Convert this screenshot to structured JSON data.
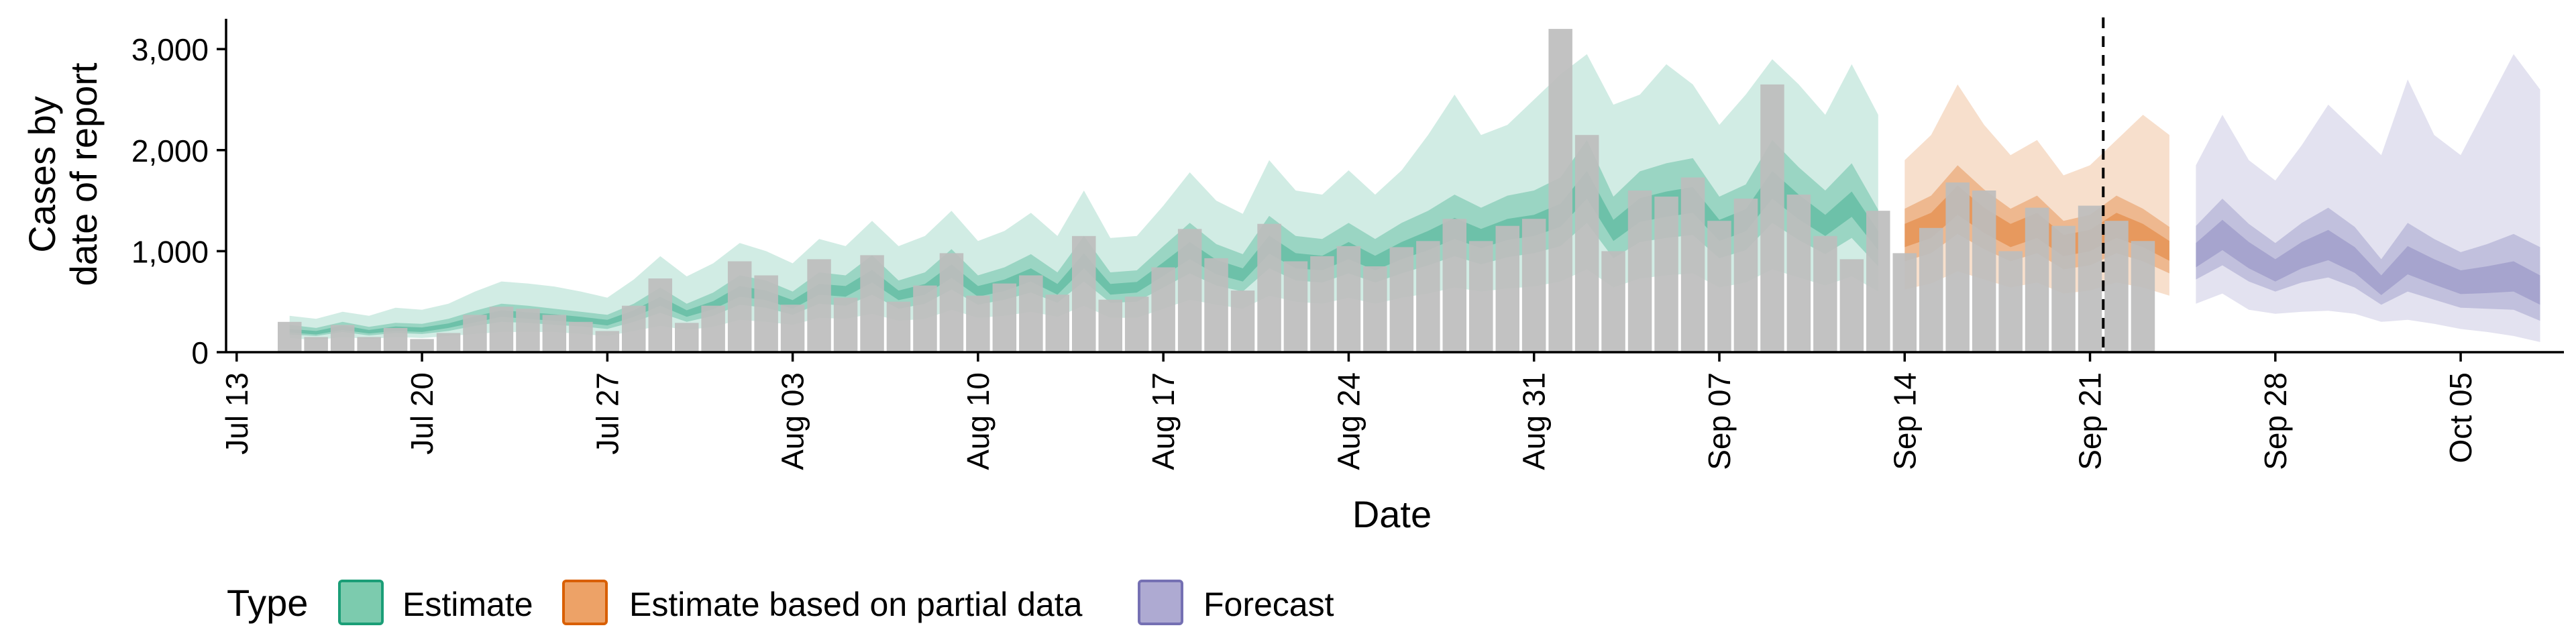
{
  "chart_data": {
    "type": "bar",
    "title": "",
    "xlabel": "Date",
    "ylabel_lines": [
      "Cases by",
      "date of report"
    ],
    "ylim": [
      0,
      3300
    ],
    "yticks": [
      0,
      1000,
      2000,
      3000
    ],
    "ytick_labels": [
      "0",
      "1,000",
      "2,000",
      "3,000"
    ],
    "x_start_date": "2020-07-13",
    "xlim_days": [
      -0.4,
      87.9
    ],
    "xticks": [
      {
        "day": 0,
        "label": "Jul 13"
      },
      {
        "day": 7,
        "label": "Jul 20"
      },
      {
        "day": 14,
        "label": "Jul 27"
      },
      {
        "day": 21,
        "label": "Aug 03"
      },
      {
        "day": 28,
        "label": "Aug 10"
      },
      {
        "day": 35,
        "label": "Aug 17"
      },
      {
        "day": 42,
        "label": "Aug 24"
      },
      {
        "day": 49,
        "label": "Aug 31"
      },
      {
        "day": 56,
        "label": "Sep 07"
      },
      {
        "day": 63,
        "label": "Sep 14"
      },
      {
        "day": 70,
        "label": "Sep 21"
      },
      {
        "day": 77,
        "label": "Sep 28"
      },
      {
        "day": 84,
        "label": "Oct 05"
      }
    ],
    "vline_day": 70.5,
    "grid": false,
    "legend": {
      "title": "Type",
      "placement": "bottom",
      "entries": [
        {
          "label": "Estimate",
          "fill": "#7ccbae",
          "stroke": "#1b9e77"
        },
        {
          "label": "Estimate based on partial data",
          "fill": "#eda267",
          "stroke": "#d95f02"
        },
        {
          "label": "Forecast",
          "fill": "#aeaad2",
          "stroke": "#7570b3"
        }
      ]
    },
    "colors": {
      "bars": "#bdbdbd",
      "estimate": "#1b9e77",
      "partial": "#d95f02",
      "forecast": "#7570b3"
    },
    "reported_cases": {
      "start_day": 2,
      "values": [
        300,
        150,
        270,
        150,
        240,
        130,
        190,
        370,
        450,
        430,
        370,
        300,
        210,
        460,
        730,
        290,
        460,
        900,
        760,
        470,
        920,
        540,
        960,
        500,
        660,
        980,
        560,
        680,
        760,
        570,
        1150,
        520,
        550,
        840,
        1220,
        930,
        610,
        1270,
        900,
        950,
        1050,
        850,
        1040,
        1100,
        1320,
        1100,
        1250,
        1320,
        3200,
        2150,
        1000,
        1600,
        1540,
        1730,
        1300,
        1520,
        2650,
        1560,
        1150,
        920,
        1400,
        980,
        1230,
        1680,
        1600,
        1000,
        1430,
        1250,
        1450,
        1300,
        1100
      ]
    },
    "bands": [
      {
        "name": "Estimate",
        "start_day": 2,
        "median": [
          210,
          190,
          240,
          200,
          230,
          220,
          260,
          320,
          380,
          360,
          340,
          320,
          290,
          380,
          500,
          380,
          460,
          600,
          560,
          470,
          620,
          600,
          750,
          560,
          620,
          800,
          600,
          660,
          760,
          620,
          900,
          620,
          640,
          820,
          1000,
          840,
          760,
          1060,
          900,
          880,
          1000,
          880,
          1000,
          1100,
          1220,
          1120,
          1210,
          1250,
          1350,
          1650,
          1200,
          1400,
          1460,
          1500,
          1200,
          1300,
          1650,
          1430,
          1250,
          1460,
          1100
        ],
        "lo90": [
          140,
          120,
          150,
          130,
          150,
          140,
          160,
          180,
          200,
          200,
          200,
          180,
          160,
          210,
          260,
          220,
          250,
          320,
          300,
          270,
          340,
          330,
          380,
          310,
          330,
          420,
          340,
          360,
          400,
          350,
          460,
          340,
          340,
          430,
          520,
          470,
          430,
          560,
          500,
          480,
          540,
          480,
          540,
          580,
          640,
          600,
          630,
          650,
          700,
          820,
          640,
          730,
          760,
          780,
          640,
          690,
          820,
          740,
          660,
          750,
          600
        ],
        "hi90": [
          360,
          330,
          400,
          360,
          440,
          420,
          480,
          600,
          700,
          680,
          650,
          600,
          540,
          720,
          950,
          750,
          880,
          1080,
          1000,
          880,
          1120,
          1050,
          1300,
          1050,
          1150,
          1400,
          1100,
          1200,
          1380,
          1150,
          1600,
          1130,
          1150,
          1450,
          1780,
          1500,
          1370,
          1900,
          1600,
          1560,
          1800,
          1560,
          1800,
          2150,
          2550,
          2150,
          2250,
          2500,
          2750,
          2950,
          2450,
          2550,
          2850,
          2650,
          2250,
          2550,
          2900,
          2650,
          2350,
          2850,
          2350
        ],
        "lo50": [
          175,
          160,
          200,
          165,
          190,
          180,
          210,
          260,
          300,
          290,
          270,
          255,
          230,
          300,
          390,
          300,
          360,
          470,
          440,
          370,
          480,
          460,
          570,
          430,
          480,
          620,
          470,
          520,
          590,
          490,
          700,
          490,
          500,
          640,
          780,
          660,
          600,
          830,
          710,
          690,
          780,
          690,
          780,
          860,
          950,
          870,
          940,
          980,
          1050,
          1280,
          930,
          1090,
          1130,
          1160,
          930,
          1010,
          1280,
          1110,
          970,
          1130,
          850
        ],
        "hi50": [
          270,
          240,
          300,
          250,
          290,
          280,
          330,
          410,
          480,
          460,
          430,
          400,
          370,
          480,
          640,
          480,
          590,
          760,
          710,
          600,
          790,
          760,
          960,
          710,
          790,
          1020,
          760,
          840,
          970,
          790,
          1150,
          790,
          810,
          1050,
          1280,
          1070,
          970,
          1350,
          1150,
          1120,
          1280,
          1120,
          1280,
          1400,
          1560,
          1430,
          1550,
          1600,
          1730,
          2100,
          1540,
          1790,
          1870,
          1920,
          1540,
          1660,
          2100,
          1830,
          1600,
          1870,
          1410
        ],
        "lo20": [
          195,
          175,
          220,
          185,
          210,
          200,
          240,
          295,
          350,
          330,
          310,
          295,
          265,
          350,
          460,
          350,
          425,
          550,
          515,
          430,
          570,
          550,
          690,
          515,
          570,
          735,
          550,
          605,
          700,
          570,
          830,
          570,
          590,
          755,
          920,
          770,
          700,
          975,
          830,
          810,
          920,
          810,
          920,
          1010,
          1120,
          1030,
          1110,
          1150,
          1240,
          1520,
          1100,
          1290,
          1340,
          1380,
          1100,
          1195,
          1520,
          1315,
          1150,
          1340,
          1010
        ],
        "hi20": [
          230,
          210,
          265,
          220,
          255,
          245,
          285,
          355,
          415,
          395,
          375,
          350,
          320,
          415,
          550,
          415,
          505,
          655,
          610,
          515,
          675,
          655,
          815,
          610,
          675,
          870,
          655,
          720,
          830,
          675,
          980,
          675,
          695,
          890,
          1090,
          915,
          830,
          1155,
          980,
          955,
          1090,
          955,
          1090,
          1200,
          1330,
          1220,
          1320,
          1360,
          1470,
          1795,
          1310,
          1525,
          1590,
          1635,
          1310,
          1415,
          1795,
          1560,
          1360,
          1590,
          1200
        ]
      },
      {
        "name": "Estimate based on partial data",
        "start_day": 63,
        "median": [
          1150,
          1250,
          1500,
          1300,
          1150,
          1250,
          1050,
          1100,
          1250,
          1150,
          1000
        ],
        "lo90": [
          620,
          680,
          800,
          720,
          640,
          690,
          580,
          610,
          690,
          640,
          560
        ],
        "hi90": [
          1900,
          2150,
          2650,
          2250,
          1950,
          2100,
          1750,
          1850,
          2100,
          2350,
          2150
        ],
        "lo50": [
          900,
          980,
          1170,
          1020,
          900,
          980,
          820,
          860,
          980,
          900,
          780
        ],
        "hi50": [
          1420,
          1550,
          1850,
          1610,
          1420,
          1550,
          1300,
          1360,
          1550,
          1420,
          1240
        ],
        "lo20": [
          1040,
          1130,
          1360,
          1180,
          1040,
          1130,
          950,
          1000,
          1130,
          1040,
          905
        ],
        "hi20": [
          1270,
          1380,
          1650,
          1430,
          1270,
          1380,
          1160,
          1210,
          1380,
          1270,
          1100
        ]
      },
      {
        "name": "Forecast",
        "start_day": 74,
        "median": [
          950,
          1150,
          950,
          800,
          950,
          1050,
          900,
          650,
          900,
          780,
          680,
          700,
          730,
          580
        ],
        "lo90": [
          480,
          580,
          420,
          380,
          400,
          410,
          380,
          300,
          320,
          280,
          230,
          200,
          160,
          100
        ],
        "hi90": [
          1850,
          2350,
          1900,
          1700,
          2050,
          2450,
          2200,
          1950,
          2700,
          2150,
          1950,
          2450,
          2950,
          2600
        ],
        "lo50": [
          720,
          860,
          700,
          600,
          690,
          740,
          640,
          470,
          600,
          520,
          440,
          430,
          420,
          310
        ],
        "hi50": [
          1250,
          1520,
          1270,
          1080,
          1280,
          1430,
          1240,
          920,
          1280,
          1120,
          990,
          1070,
          1170,
          1040
        ],
        "lo20": [
          840,
          1010,
          830,
          700,
          830,
          910,
          785,
          565,
          770,
          670,
          575,
          585,
          600,
          470
        ],
        "hi20": [
          1080,
          1310,
          1090,
          920,
          1090,
          1210,
          1040,
          760,
          1050,
          920,
          810,
          850,
          900,
          760
        ]
      }
    ]
  }
}
